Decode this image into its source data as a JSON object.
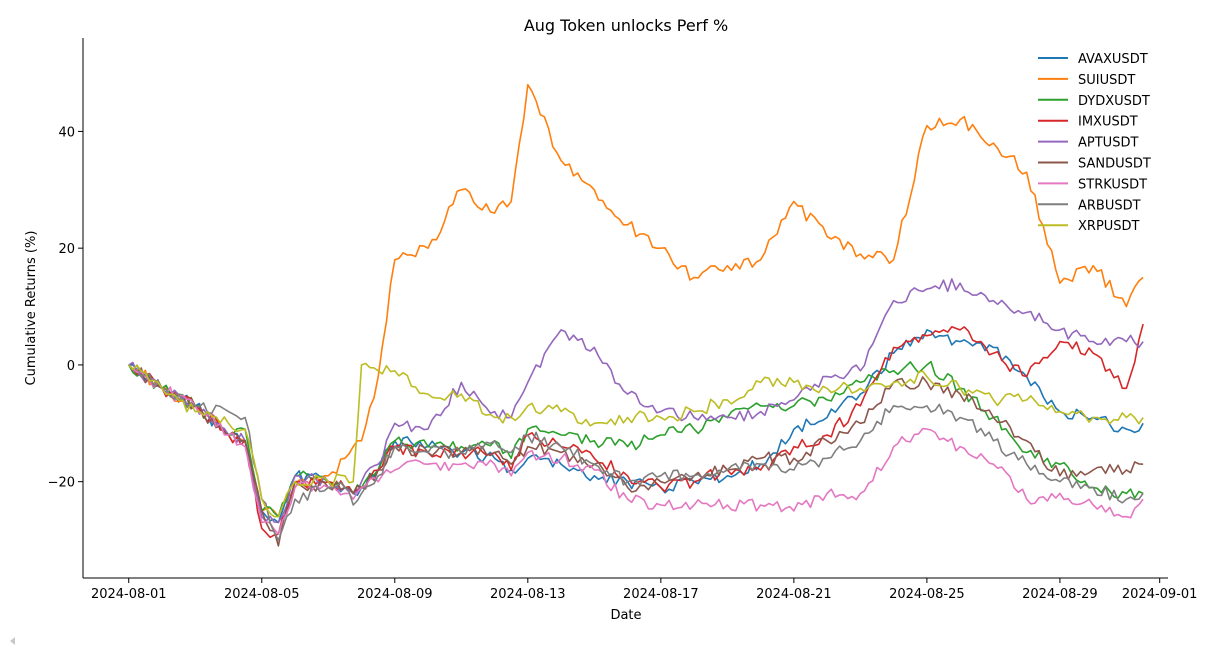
{
  "chart_data": {
    "type": "line",
    "title": "Aug Token unlocks Perf %",
    "xlabel": "Date",
    "ylabel": "Cumulative Returns (%)",
    "xlim": [
      "2024-07-30T15:00",
      "2024-09-01T06:00"
    ],
    "ylim": [
      -36.5,
      56
    ],
    "xticks": [
      "2024-08-01",
      "2024-08-05",
      "2024-08-09",
      "2024-08-13",
      "2024-08-17",
      "2024-08-21",
      "2024-08-25",
      "2024-08-29",
      "2024-09-01"
    ],
    "yticks": [
      -20,
      0,
      20,
      40
    ],
    "ytick_labels": [
      "−20",
      "0",
      "20",
      "40"
    ],
    "legend_position": "top-right",
    "x": [
      "2024-08-01T00:00",
      "2024-08-02T00:00",
      "2024-08-03T00:00",
      "2024-08-04T00:00",
      "2024-08-04T12:00",
      "2024-08-05T00:00",
      "2024-08-05T12:00",
      "2024-08-06T00:00",
      "2024-08-07T00:00",
      "2024-08-07T12:00",
      "2024-08-07T18:00",
      "2024-08-08T00:00",
      "2024-08-08T12:00",
      "2024-08-09T00:00",
      "2024-08-10T00:00",
      "2024-08-11T00:00",
      "2024-08-12T00:00",
      "2024-08-12T12:00",
      "2024-08-13T00:00",
      "2024-08-14T00:00",
      "2024-08-15T00:00",
      "2024-08-16T00:00",
      "2024-08-17T00:00",
      "2024-08-18T00:00",
      "2024-08-19T00:00",
      "2024-08-20T00:00",
      "2024-08-21T00:00",
      "2024-08-22T00:00",
      "2024-08-23T00:00",
      "2024-08-24T00:00",
      "2024-08-25T00:00",
      "2024-08-26T00:00",
      "2024-08-27T00:00",
      "2024-08-28T00:00",
      "2024-08-29T00:00",
      "2024-08-30T00:00",
      "2024-08-31T00:00",
      "2024-08-31T12:00"
    ],
    "series": [
      {
        "name": "AVAXUSDT",
        "color": "#1f77b4",
        "values": [
          0,
          -4,
          -7,
          -12,
          -13,
          -25,
          -27,
          -19,
          -20,
          -21,
          -22,
          -21,
          -18,
          -13,
          -14,
          -15,
          -16,
          -18,
          -16,
          -17,
          -19,
          -20,
          -21,
          -20,
          -19,
          -17,
          -11,
          -9,
          -5,
          2,
          6,
          4,
          3,
          -2,
          -8,
          -9,
          -11,
          -10
        ]
      },
      {
        "name": "SUIUSDT",
        "color": "#ff7f0e",
        "values": [
          0,
          -4,
          -7,
          -12,
          -13,
          -25,
          -26,
          -21,
          -19,
          -16,
          -14,
          -13,
          -2,
          18,
          20,
          30,
          26,
          28,
          48,
          35,
          30,
          24,
          20,
          15,
          17,
          18,
          28,
          22,
          19,
          18,
          41,
          42,
          38,
          33,
          14,
          17,
          10,
          15
        ]
      },
      {
        "name": "DYDXUSDT",
        "color": "#2ca02c",
        "values": [
          0,
          -4,
          -7,
          -12,
          -11,
          -25,
          -26,
          -19,
          -20,
          -21,
          -22,
          -21,
          -18,
          -13,
          -14,
          -14,
          -13,
          -16,
          -11,
          -12,
          -13,
          -14,
          -12,
          -11,
          -9,
          -7,
          -7,
          -6,
          -3,
          -1,
          0,
          -4,
          -9,
          -15,
          -17,
          -21,
          -22,
          -22
        ]
      },
      {
        "name": "IMXUSDT",
        "color": "#d62728",
        "values": [
          0,
          -4,
          -7,
          -12,
          -13,
          -28,
          -29,
          -20,
          -20,
          -21,
          -22,
          -21,
          -18,
          -14,
          -15,
          -15,
          -15,
          -18,
          -12,
          -14,
          -16,
          -19,
          -21,
          -20,
          -18,
          -18,
          -14,
          -12,
          -7,
          3,
          5,
          6,
          2,
          -2,
          4,
          2,
          -4,
          7
        ]
      },
      {
        "name": "APTUSDT",
        "color": "#9467bd",
        "values": [
          0,
          -4,
          -7,
          -12,
          -13,
          -26,
          -27,
          -19,
          -20,
          -21,
          -22,
          -20,
          -17,
          -10,
          -11,
          -3,
          -8,
          -9,
          -3,
          6,
          3,
          -5,
          -8,
          -9,
          -9,
          -8,
          -6,
          -2,
          -1,
          11,
          13,
          14,
          11,
          9,
          6,
          4,
          4,
          4
        ]
      },
      {
        "name": "SANDUSDT",
        "color": "#8c564b",
        "values": [
          0,
          -4,
          -7,
          -12,
          -13,
          -25,
          -31,
          -20,
          -21,
          -21,
          -22,
          -21,
          -18,
          -14,
          -15,
          -15,
          -15,
          -17,
          -14,
          -15,
          -17,
          -21,
          -20,
          -19,
          -18,
          -16,
          -16,
          -13,
          -10,
          -3,
          -3,
          -5,
          -9,
          -13,
          -19,
          -18,
          -18,
          -17
        ]
      },
      {
        "name": "STRKUSDT",
        "color": "#e377c2",
        "values": [
          0,
          -4,
          -7,
          -12,
          -14,
          -27,
          -29,
          -21,
          -21,
          -22,
          -23,
          -21,
          -20,
          -18,
          -17,
          -17,
          -17,
          -19,
          -15,
          -16,
          -18,
          -23,
          -24,
          -24,
          -24,
          -24,
          -25,
          -22,
          -22,
          -14,
          -11,
          -14,
          -17,
          -23,
          -22,
          -24,
          -26,
          -23
        ]
      },
      {
        "name": "ARBUSDT",
        "color": "#7f7f7f",
        "values": [
          0,
          -4,
          -7,
          -8,
          -9,
          -23,
          -30,
          -23,
          -21,
          -21,
          -24,
          -22,
          -19,
          -14,
          -15,
          -15,
          -13,
          -15,
          -12,
          -14,
          -17,
          -20,
          -19,
          -19,
          -18,
          -17,
          -18,
          -16,
          -13,
          -7,
          -7,
          -9,
          -13,
          -17,
          -20,
          -21,
          -23,
          -22
        ]
      },
      {
        "name": "XRPUSDT",
        "color": "#bcbd22",
        "values": [
          0,
          -4,
          -8,
          -10,
          -11,
          -23,
          -26,
          -20,
          -20,
          -19,
          -20,
          0,
          -1,
          -1,
          -5,
          -5,
          -9,
          -9,
          -7,
          -8,
          -10,
          -9,
          -9,
          -8,
          -6,
          -3,
          -3,
          -4,
          -4,
          -3,
          -2,
          -4,
          -6,
          -6,
          -8,
          -9,
          -9,
          -9
        ]
      }
    ]
  }
}
